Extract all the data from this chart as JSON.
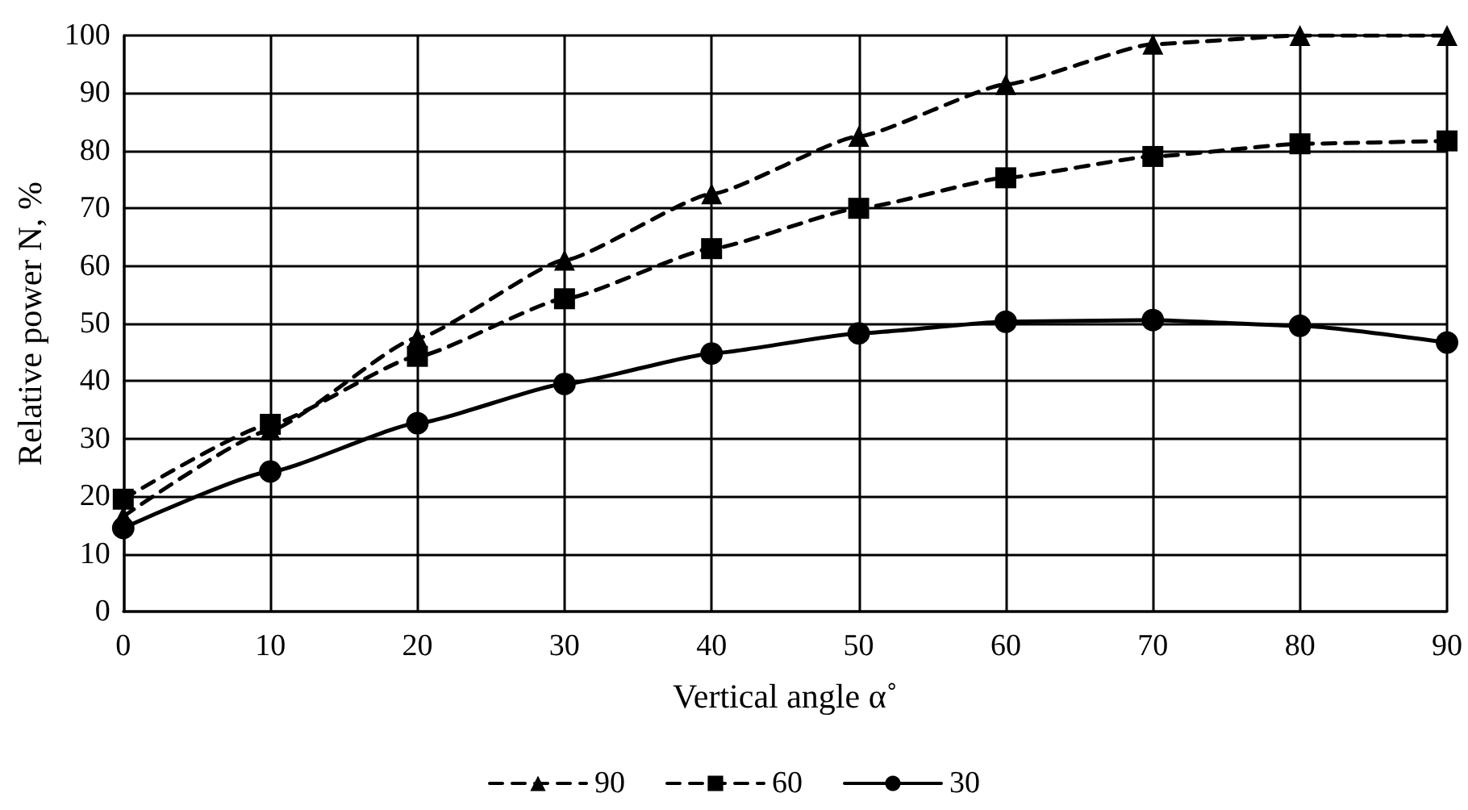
{
  "chart_data": {
    "type": "line",
    "xlabel": "Vertical angle α˚",
    "ylabel": "Relative power N, %",
    "x": [
      0,
      10,
      20,
      30,
      40,
      50,
      60,
      70,
      80,
      90
    ],
    "series": [
      {
        "name": "90",
        "color": "#000000",
        "marker": "triangle",
        "line_style": "dashed",
        "values": [
          16.5,
          31.5,
          47.5,
          61,
          72.5,
          82.5,
          91.5,
          98.5,
          100,
          100
        ]
      },
      {
        "name": "60",
        "color": "#000000",
        "marker": "square",
        "line_style": "dashed",
        "values": [
          19.5,
          32.5,
          44.3,
          54.3,
          63,
          70,
          75.3,
          79,
          81.2,
          81.7
        ]
      },
      {
        "name": "30",
        "color": "#000000",
        "marker": "circle",
        "line_style": "solid",
        "values": [
          14.5,
          24.3,
          32.7,
          39.5,
          44.8,
          48.3,
          50.3,
          50.6,
          49.6,
          46.7
        ]
      }
    ],
    "xlim": [
      0,
      90
    ],
    "xticks": [
      0,
      10,
      20,
      30,
      40,
      50,
      60,
      70,
      80,
      90
    ],
    "ylim": [
      0,
      100
    ],
    "yticks": [
      0,
      10,
      20,
      30,
      40,
      50,
      60,
      70,
      80,
      90,
      100
    ],
    "grid": true,
    "legend": "bottom"
  }
}
